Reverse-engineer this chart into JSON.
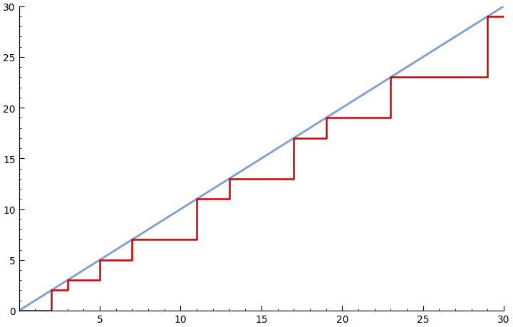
{
  "xlim": [
    0,
    30
  ],
  "ylim": [
    0,
    30
  ],
  "xticks": [
    5,
    10,
    15,
    20,
    25,
    30
  ],
  "yticks": [
    0,
    5,
    10,
    15,
    20,
    25,
    30
  ],
  "primes": [
    2,
    3,
    5,
    7,
    11,
    13,
    17,
    19,
    23,
    29
  ],
  "smooth_color": "#7b9fd4",
  "step_color": "#cc0000",
  "smooth_linewidth": 2.0,
  "step_linewidth": 1.8,
  "background_color": "#ffffff",
  "figsize": [
    7.2,
    4.6
  ],
  "dpi": 100
}
